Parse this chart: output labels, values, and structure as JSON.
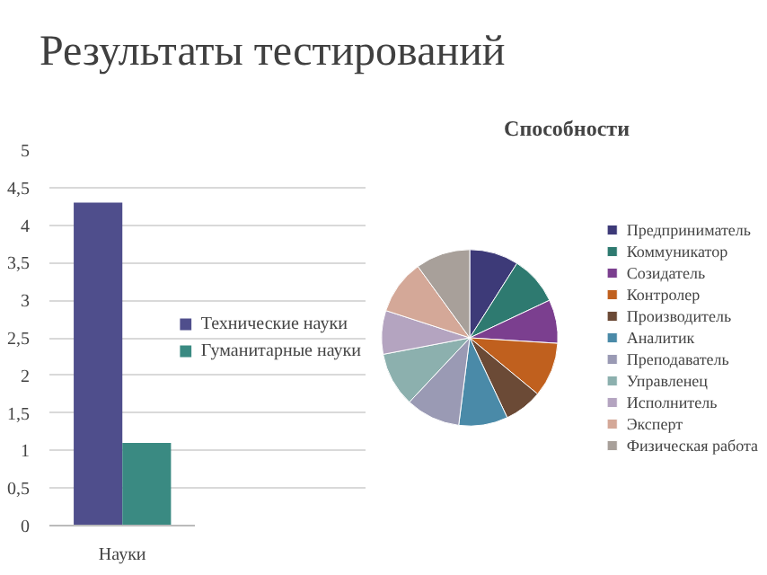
{
  "chart_data": [
    {
      "type": "bar",
      "title": "Результаты тестирований",
      "categories": [
        "Науки"
      ],
      "series": [
        {
          "name": "Технические науки",
          "color": "#4f4e8c",
          "values": [
            4.3
          ]
        },
        {
          "name": "Гуманитарные науки",
          "color": "#3a8a82",
          "values": [
            1.1
          ]
        }
      ],
      "ylim": [
        0,
        5
      ],
      "yticks": [
        0,
        {
          "value": 0.5,
          "label": "0,5"
        },
        1,
        {
          "value": 1.5,
          "label": "1,5"
        },
        2,
        {
          "value": 2.5,
          "label": "2,5"
        },
        3,
        {
          "value": 3.5,
          "label": "3,5"
        },
        4,
        {
          "value": 4.5,
          "label": "4,5"
        },
        5
      ],
      "grid": "y",
      "legend": "right"
    },
    {
      "type": "pie",
      "title": "Способности",
      "categories": [
        "Предприниматель",
        "Коммуникатор",
        "Созидатель",
        "Контролер",
        "Производитель",
        "Аналитик",
        "Преподаватель",
        "Управленец",
        "Исполнитель",
        "Эксперт",
        "Физическая работа"
      ],
      "values": [
        9,
        9,
        8,
        10,
        7,
        9,
        10,
        10,
        8,
        10,
        10
      ],
      "colors": [
        "#3d3a78",
        "#2e7a70",
        "#7b3f8f",
        "#c0601e",
        "#6b4a36",
        "#4a8aa8",
        "#9a9ab4",
        "#8cb0ae",
        "#b4a4c0",
        "#d4a898",
        "#a8a09a"
      ],
      "legend": "right"
    }
  ]
}
